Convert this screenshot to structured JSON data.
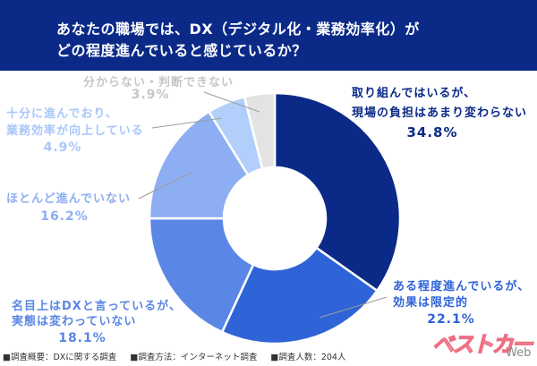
{
  "header": {
    "title_line1": "あなたの職場では、DX（デジタル化・業務効率化）が",
    "title_line2": "どの程度進んでいると感じているか？"
  },
  "chart_data": {
    "type": "pie",
    "donut": true,
    "title": "あなたの職場では、DX（デジタル化・業務効率化）がどの程度進んでいると感じているか？",
    "categories": [
      "取り組んではいるが、現場の負担はあまり変わらない",
      "ある程度進んでいるが、効果は限定的",
      "名目上はDXと言っているが、実態は変わっていない",
      "ほとんど進んでいない",
      "十分に進んでおり、業務効率が向上している",
      "分からない・判断できない"
    ],
    "values": [
      34.8,
      22.1,
      18.1,
      16.2,
      4.9,
      3.9
    ],
    "unit": "%",
    "colors": [
      "#0b2a88",
      "#2f63d8",
      "#5a86e5",
      "#8daef2",
      "#b2cffb",
      "#e3e3e3"
    ],
    "start_angle": "12 o'clock, clockwise",
    "legend": "none (direct labels)"
  },
  "labels": [
    {
      "lines": [
        "取り組んではいるが、",
        "現場の負担はあまり変わらない"
      ],
      "pct": "34.8%"
    },
    {
      "lines": [
        "ある程度進んでいるが、",
        "効果は限定的"
      ],
      "pct": "22.1%"
    },
    {
      "lines": [
        "名目上はDXと言っているが、",
        "実態は変わっていない"
      ],
      "pct": "18.1%"
    },
    {
      "lines": [
        "ほとんど進んでいない"
      ],
      "pct": "16.2%"
    },
    {
      "lines": [
        "十分に進んでおり、",
        "業務効率が向上している"
      ],
      "pct": "4.9%"
    },
    {
      "lines": [
        "分からない・判断できない"
      ],
      "pct": "3.9%"
    }
  ],
  "footer": {
    "items": [
      "■調査概要：DXに関する調査",
      "■調査方法：インターネット調査",
      "■調査人数：204人"
    ]
  },
  "logo": {
    "main": "ベストカー",
    "suffix": "Web"
  }
}
